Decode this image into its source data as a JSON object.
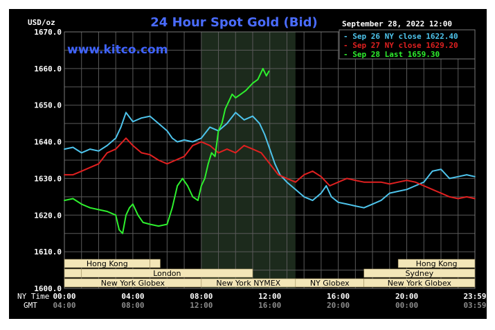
{
  "chart_data": {
    "type": "line",
    "title": "24 Hour Spot Gold (Bid)",
    "watermark": "www.kitco.com",
    "date_label": "September 28, 2022 12:00",
    "ylabel": "USD/oz",
    "ylim": [
      1600,
      1670
    ],
    "yticks": [
      "1670.0",
      "1660.0",
      "1650.0",
      "1640.0",
      "1630.0",
      "1620.0",
      "1610.0",
      "1600.0"
    ],
    "ytick_values": [
      1670,
      1660,
      1650,
      1640,
      1630,
      1620,
      1610,
      1600
    ],
    "xlim": [
      0,
      23.983
    ],
    "x_axis_label_ny": "NY Time",
    "x_axis_label_gmt": "GMT",
    "xticks_ny": [
      "00:00",
      "04:00",
      "08:00",
      "12:00",
      "16:00",
      "20:00",
      "23:59"
    ],
    "xticks_gmt": [
      "04:00",
      "08:00",
      "12:00",
      "16:00",
      "20:00",
      "00:00",
      "03:59"
    ],
    "xtick_hours": [
      0,
      4,
      8,
      12,
      16,
      20,
      23.983
    ],
    "grid": true,
    "legend_position": "top-right",
    "highlight_hours": [
      8,
      13.5
    ],
    "colors": {
      "background": "#000000",
      "plot": "#000000",
      "grid": "#5a5a5a",
      "axis_text": "#ffffff",
      "title": "#4a6cff",
      "watermark": "#3f63ff",
      "highlight": "#1c2a1c",
      "market_fill": "#f3e6b8",
      "market_text": "#000000"
    },
    "series": [
      {
        "name": "Sep 26 NY close 1622.40",
        "color": "#4ec4ec",
        "x": [
          0,
          0.5,
          1,
          1.5,
          2,
          2.5,
          3,
          3.3,
          3.6,
          4,
          4.5,
          5,
          5.5,
          6,
          6.3,
          6.6,
          7,
          7.5,
          8,
          8.5,
          9,
          9.5,
          10,
          10.5,
          11,
          11.4,
          11.7,
          12,
          12.3,
          12.6,
          13,
          13.5,
          14,
          14.5,
          15,
          15.3,
          15.6,
          16,
          16.5,
          17,
          17.5,
          18,
          18.5,
          19,
          19.5,
          20,
          20.5,
          21,
          21.5,
          22,
          22.5,
          23,
          23.5,
          23.98
        ],
        "values": [
          1638,
          1638.5,
          1637,
          1638,
          1637.5,
          1639,
          1641,
          1644,
          1648,
          1645.5,
          1646.5,
          1647,
          1645,
          1643,
          1641,
          1640,
          1640.5,
          1640,
          1641,
          1644,
          1643,
          1645,
          1648,
          1646,
          1647,
          1645,
          1642,
          1638,
          1634,
          1631,
          1629,
          1627,
          1625,
          1624,
          1626,
          1628,
          1625,
          1623.5,
          1623,
          1622.5,
          1622,
          1623,
          1624,
          1626,
          1626.5,
          1627,
          1628,
          1629,
          1632,
          1632.5,
          1630,
          1630.5,
          1631,
          1630.5
        ]
      },
      {
        "name": "Sep 27 NY close 1629.20",
        "color": "#e02020",
        "x": [
          0,
          0.5,
          1,
          1.5,
          2,
          2.5,
          3,
          3.3,
          3.6,
          4,
          4.5,
          5,
          5.5,
          6,
          6.5,
          7,
          7.5,
          8,
          8.5,
          9,
          9.5,
          10,
          10.5,
          11,
          11.5,
          12,
          12.5,
          13,
          13.5,
          14,
          14.5,
          15,
          15.5,
          16,
          16.5,
          17,
          17.5,
          18,
          18.5,
          19,
          19.5,
          20,
          20.5,
          21,
          21.5,
          22,
          22.5,
          23,
          23.5,
          23.98
        ],
        "values": [
          1631,
          1631,
          1632,
          1633,
          1634,
          1637,
          1638,
          1639.5,
          1641,
          1639,
          1637,
          1636.5,
          1635,
          1634,
          1635,
          1636,
          1639,
          1640,
          1639,
          1637,
          1638,
          1637,
          1639,
          1638,
          1637,
          1634,
          1631,
          1630,
          1629,
          1631,
          1632,
          1630.5,
          1628,
          1629,
          1630,
          1629.5,
          1629,
          1629,
          1629,
          1628.5,
          1629,
          1629.5,
          1629,
          1628,
          1627,
          1626,
          1625,
          1624.5,
          1625,
          1624.5
        ]
      },
      {
        "name": "Sep 28 Last 1659.30",
        "color": "#2ef02e",
        "x": [
          0,
          0.5,
          1,
          1.5,
          2,
          2.5,
          3,
          3.2,
          3.4,
          3.6,
          3.8,
          4,
          4.3,
          4.6,
          5,
          5.5,
          6,
          6.3,
          6.6,
          6.9,
          7.2,
          7.5,
          7.8,
          8,
          8.2,
          8.4,
          8.6,
          8.8,
          9,
          9.2,
          9.4,
          9.6,
          9.8,
          10,
          10.3,
          10.6,
          11,
          11.3,
          11.6,
          11.8,
          11.95
        ],
        "values": [
          1624,
          1624.5,
          1623,
          1622,
          1621.5,
          1621,
          1620,
          1616,
          1615,
          1620,
          1622,
          1623,
          1620,
          1618,
          1617.5,
          1617,
          1617.5,
          1622,
          1628,
          1630,
          1628,
          1625,
          1624,
          1628,
          1630,
          1634,
          1637,
          1636,
          1643,
          1645,
          1649,
          1651,
          1653,
          1652,
          1653,
          1654,
          1656,
          1657,
          1660,
          1658,
          1659.3
        ]
      }
    ],
    "markets": [
      {
        "label": "Hong Kong",
        "row": 0,
        "start": 0,
        "end": 5,
        "show_label": true
      },
      {
        "label": "Hong Kong",
        "row": 0,
        "start": 5,
        "end": 5.6,
        "show_label": false
      },
      {
        "label": "London",
        "row": 1,
        "start": 0,
        "end": 1,
        "show_label": false
      },
      {
        "label": "London",
        "row": 1,
        "start": 1,
        "end": 11,
        "show_label": true
      },
      {
        "label": "New York Globex",
        "row": 2,
        "start": 0,
        "end": 8,
        "show_label": true
      },
      {
        "label": "New York NYMEX",
        "row": 2,
        "start": 8,
        "end": 13.5,
        "show_label": true
      },
      {
        "label": "NY Globex",
        "row": 2,
        "start": 13.5,
        "end": 17.5,
        "show_label": true
      },
      {
        "label": "Hong Kong",
        "row": 0,
        "start": 19.5,
        "end": 23.98,
        "show_label": true
      },
      {
        "label": "Sydney",
        "row": 1,
        "start": 17.5,
        "end": 23.98,
        "show_label": true
      },
      {
        "label": "New York Globex",
        "row": 2,
        "start": 17.5,
        "end": 23.98,
        "show_label": true
      }
    ]
  }
}
